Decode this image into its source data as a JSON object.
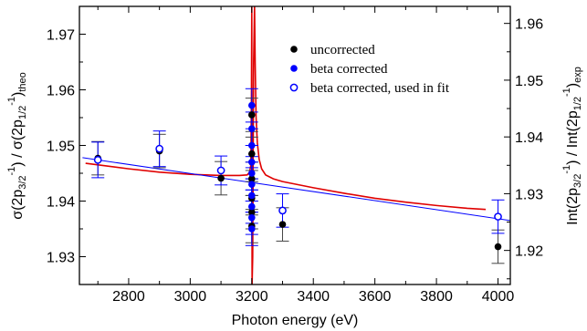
{
  "chart_data": {
    "type": "scatter",
    "xlabel": "Photon energy (eV)",
    "ylabel_left": {
      "main": "σ(2p",
      "sub1": "3/2",
      "sup1": "-1",
      "mid": ") / σ(2p",
      "sub2": "1/2",
      "sup2": "-1",
      "end": ")",
      "sub3": "theo"
    },
    "ylabel_right": {
      "main": "Int(2p",
      "sub1": "3/2",
      "sup1": "-1",
      "mid": ") / Int(2p",
      "sub2": "1/2",
      "sup2": "-1",
      "end": ")",
      "sub3": "exp"
    },
    "xlim": [
      2640,
      4040
    ],
    "ylim_left": [
      1.925,
      1.975
    ],
    "ylim_right": [
      1.914,
      1.963
    ],
    "x_ticks": [
      2800,
      3000,
      3200,
      3400,
      3600,
      3800,
      4000
    ],
    "x_tick_labels": [
      "2800",
      "3000",
      "3200",
      "3400",
      "3600",
      "3800",
      "4000"
    ],
    "y_left_ticks": [
      1.93,
      1.94,
      1.95,
      1.96,
      1.97
    ],
    "y_left_tick_labels": [
      "1.93",
      "1.94",
      "1.95",
      "1.96",
      "1.97"
    ],
    "y_right_ticks": [
      1.92,
      1.93,
      1.94,
      1.95,
      1.96
    ],
    "y_right_tick_labels": [
      "1.92",
      "1.93",
      "1.94",
      "1.95",
      "1.96"
    ],
    "legend": [
      {
        "label": "uncorrected",
        "marker": "filled",
        "color": "#000000"
      },
      {
        "label": "beta corrected",
        "marker": "filled",
        "color": "#0000ff"
      },
      {
        "label": "beta corrected, used in fit",
        "marker": "open",
        "color": "#0000ff"
      }
    ],
    "legend_position": "top-right",
    "uncorrected": [
      {
        "x": 2700,
        "y": 1.9477,
        "err": 0.003
      },
      {
        "x": 2900,
        "y": 1.949,
        "err": 0.003
      },
      {
        "x": 3100,
        "y": 1.9441,
        "err": 0.003
      },
      {
        "x": 3200,
        "y": 1.9555,
        "err": 0.003
      },
      {
        "x": 3200,
        "y": 1.9485,
        "err": 0.003
      },
      {
        "x": 3200,
        "y": 1.944,
        "err": 0.003
      },
      {
        "x": 3200,
        "y": 1.9405,
        "err": 0.003
      },
      {
        "x": 3200,
        "y": 1.938,
        "err": 0.003
      },
      {
        "x": 3200,
        "y": 1.9355,
        "err": 0.003
      },
      {
        "x": 3300,
        "y": 1.9358,
        "err": 0.003
      },
      {
        "x": 4000,
        "y": 1.9318,
        "err": 0.003
      }
    ],
    "beta_corrected": [
      {
        "x": 3200,
        "y": 1.9572,
        "err": 0.003
      },
      {
        "x": 3200,
        "y": 1.953,
        "err": 0.003
      },
      {
        "x": 3200,
        "y": 1.95,
        "err": 0.003
      },
      {
        "x": 3200,
        "y": 1.947,
        "err": 0.003
      },
      {
        "x": 3200,
        "y": 1.945,
        "err": 0.003
      },
      {
        "x": 3200,
        "y": 1.943,
        "err": 0.003
      },
      {
        "x": 3200,
        "y": 1.941,
        "err": 0.003
      },
      {
        "x": 3200,
        "y": 1.939,
        "err": 0.003
      },
      {
        "x": 3200,
        "y": 1.937,
        "err": 0.003
      },
      {
        "x": 3200,
        "y": 1.935,
        "err": 0.003
      }
    ],
    "beta_corrected_used_in_fit": [
      {
        "x": 2700,
        "y": 1.9474,
        "err": 0.0032
      },
      {
        "x": 2900,
        "y": 1.9494,
        "err": 0.0032
      },
      {
        "x": 3100,
        "y": 1.9455,
        "err": 0.0026
      },
      {
        "x": 3300,
        "y": 1.9383,
        "err": 0.003
      },
      {
        "x": 4000,
        "y": 1.9372,
        "err": 0.003
      }
    ],
    "fit_line": {
      "color": "#0000ff",
      "points": [
        [
          2650,
          1.9478
        ],
        [
          4040,
          1.9365
        ]
      ]
    },
    "theory_curve": {
      "color": "#e00000",
      "points": [
        [
          2660,
          1.9468
        ],
        [
          2800,
          1.9458
        ],
        [
          2900,
          1.9452
        ],
        [
          3000,
          1.9448
        ],
        [
          3100,
          1.9446
        ],
        [
          3160,
          1.9446
        ],
        [
          3185,
          1.9447
        ],
        [
          3193,
          1.9452
        ],
        [
          3197,
          1.9465
        ],
        [
          3199,
          1.96
        ],
        [
          3200,
          1.975
        ],
        [
          3201,
          1.925
        ],
        [
          3203,
          1.93
        ],
        [
          3206,
          1.965
        ],
        [
          3209,
          1.975
        ],
        [
          3211,
          1.965
        ],
        [
          3214,
          1.955
        ],
        [
          3218,
          1.9505
        ],
        [
          3224,
          1.9475
        ],
        [
          3232,
          1.9458
        ],
        [
          3245,
          1.9447
        ],
        [
          3270,
          1.944
        ],
        [
          3300,
          1.9435
        ],
        [
          3400,
          1.9424
        ],
        [
          3500,
          1.9414
        ],
        [
          3600,
          1.9405
        ],
        [
          3700,
          1.9398
        ],
        [
          3800,
          1.9392
        ],
        [
          3900,
          1.9387
        ],
        [
          3960,
          1.9385
        ]
      ]
    }
  }
}
